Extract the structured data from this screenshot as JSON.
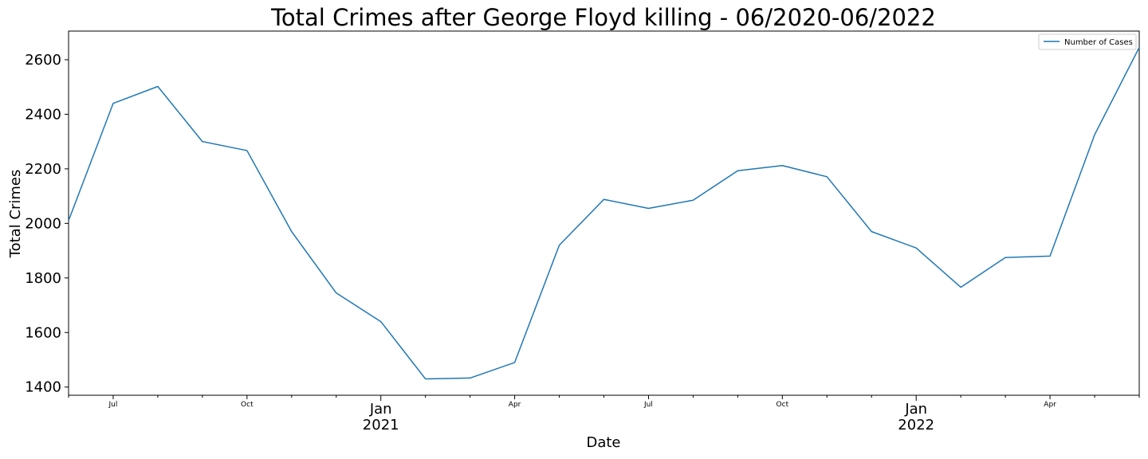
{
  "chart_data": {
    "type": "line",
    "title": "Total Crimes after George Floyd killing - 06/2020-06/2022",
    "xlabel": "Date",
    "ylabel": "Total Crimes",
    "ylim": [
      1370,
      2705
    ],
    "xlim": [
      "2020-06",
      "2022-06"
    ],
    "y_ticks": [
      1400,
      1600,
      1800,
      2000,
      2200,
      2400,
      2600
    ],
    "x_ticks": [
      {
        "month": "2020-07",
        "label": "Jul",
        "year": ""
      },
      {
        "month": "2020-10",
        "label": "Oct",
        "year": ""
      },
      {
        "month": "2021-01",
        "label": "Jan",
        "year": "2021"
      },
      {
        "month": "2021-04",
        "label": "Apr",
        "year": ""
      },
      {
        "month": "2021-07",
        "label": "Jul",
        "year": ""
      },
      {
        "month": "2021-10",
        "label": "Oct",
        "year": ""
      },
      {
        "month": "2022-01",
        "label": "Jan",
        "year": "2022"
      },
      {
        "month": "2022-04",
        "label": "Apr",
        "year": ""
      }
    ],
    "legend_position": "top-right",
    "grid": false,
    "series": [
      {
        "name": "Number of Cases",
        "color": "#1f77b4",
        "points": [
          {
            "x": "2020-06",
            "y": 2010
          },
          {
            "x": "2020-07",
            "y": 2440
          },
          {
            "x": "2020-08",
            "y": 2502
          },
          {
            "x": "2020-09",
            "y": 2300
          },
          {
            "x": "2020-10",
            "y": 2267
          },
          {
            "x": "2020-11",
            "y": 1970
          },
          {
            "x": "2020-12",
            "y": 1745
          },
          {
            "x": "2021-01",
            "y": 1640
          },
          {
            "x": "2021-02",
            "y": 1430
          },
          {
            "x": "2021-03",
            "y": 1433
          },
          {
            "x": "2021-04",
            "y": 1490
          },
          {
            "x": "2021-05",
            "y": 1920
          },
          {
            "x": "2021-06",
            "y": 2088
          },
          {
            "x": "2021-07",
            "y": 2055
          },
          {
            "x": "2021-08",
            "y": 2085
          },
          {
            "x": "2021-09",
            "y": 2193
          },
          {
            "x": "2021-10",
            "y": 2212
          },
          {
            "x": "2021-11",
            "y": 2171
          },
          {
            "x": "2021-12",
            "y": 1970
          },
          {
            "x": "2022-01",
            "y": 1910
          },
          {
            "x": "2022-02",
            "y": 1766
          },
          {
            "x": "2022-03",
            "y": 1875
          },
          {
            "x": "2022-04",
            "y": 1880
          },
          {
            "x": "2022-05",
            "y": 2325
          },
          {
            "x": "2022-06",
            "y": 2645
          }
        ]
      }
    ]
  }
}
